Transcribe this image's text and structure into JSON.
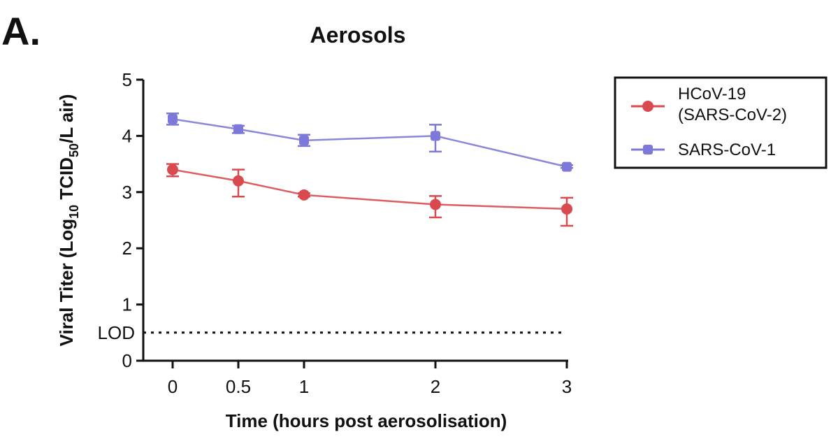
{
  "panel_label": "A.",
  "chart_data": {
    "type": "line",
    "title": "Aerosols",
    "xlabel": "Time (hours post aerosolisation)",
    "ylabel": {
      "prefix": "Viral Titer (Log",
      "sub1": "10",
      "mid": " TCID",
      "sub2": "50",
      "suffix": "/L air)"
    },
    "x_ticks": [
      "0",
      "0.5",
      "1",
      "2",
      "3"
    ],
    "y_ticks": [
      "0",
      "1",
      "2",
      "3",
      "4",
      "5"
    ],
    "xlim": [
      0,
      3
    ],
    "ylim": [
      0,
      5
    ],
    "lod": {
      "label": "LOD",
      "value": 0.5
    },
    "x": [
      0,
      0.5,
      1,
      2,
      3
    ],
    "series": [
      {
        "name": "HCoV-19\n(SARS-CoV-2)",
        "name_lines": [
          "HCoV-19",
          "(SARS-CoV-2)"
        ],
        "marker": "circle",
        "color": "#d94a4f",
        "y": [
          3.4,
          3.2,
          2.95,
          2.78,
          2.7
        ],
        "err_low": [
          3.28,
          2.92,
          2.92,
          2.55,
          2.4
        ],
        "err_high": [
          3.5,
          3.4,
          2.98,
          2.93,
          2.9
        ]
      },
      {
        "name": "SARS-CoV-1",
        "name_lines": [
          "SARS-CoV-1"
        ],
        "marker": "square",
        "color": "#7d79d8",
        "y": [
          4.3,
          4.12,
          3.92,
          4.0,
          3.45
        ],
        "err_low": [
          4.2,
          4.05,
          3.82,
          3.72,
          3.43
        ],
        "err_high": [
          4.4,
          4.18,
          4.02,
          4.2,
          3.48
        ]
      }
    ],
    "legend_position": "right"
  }
}
